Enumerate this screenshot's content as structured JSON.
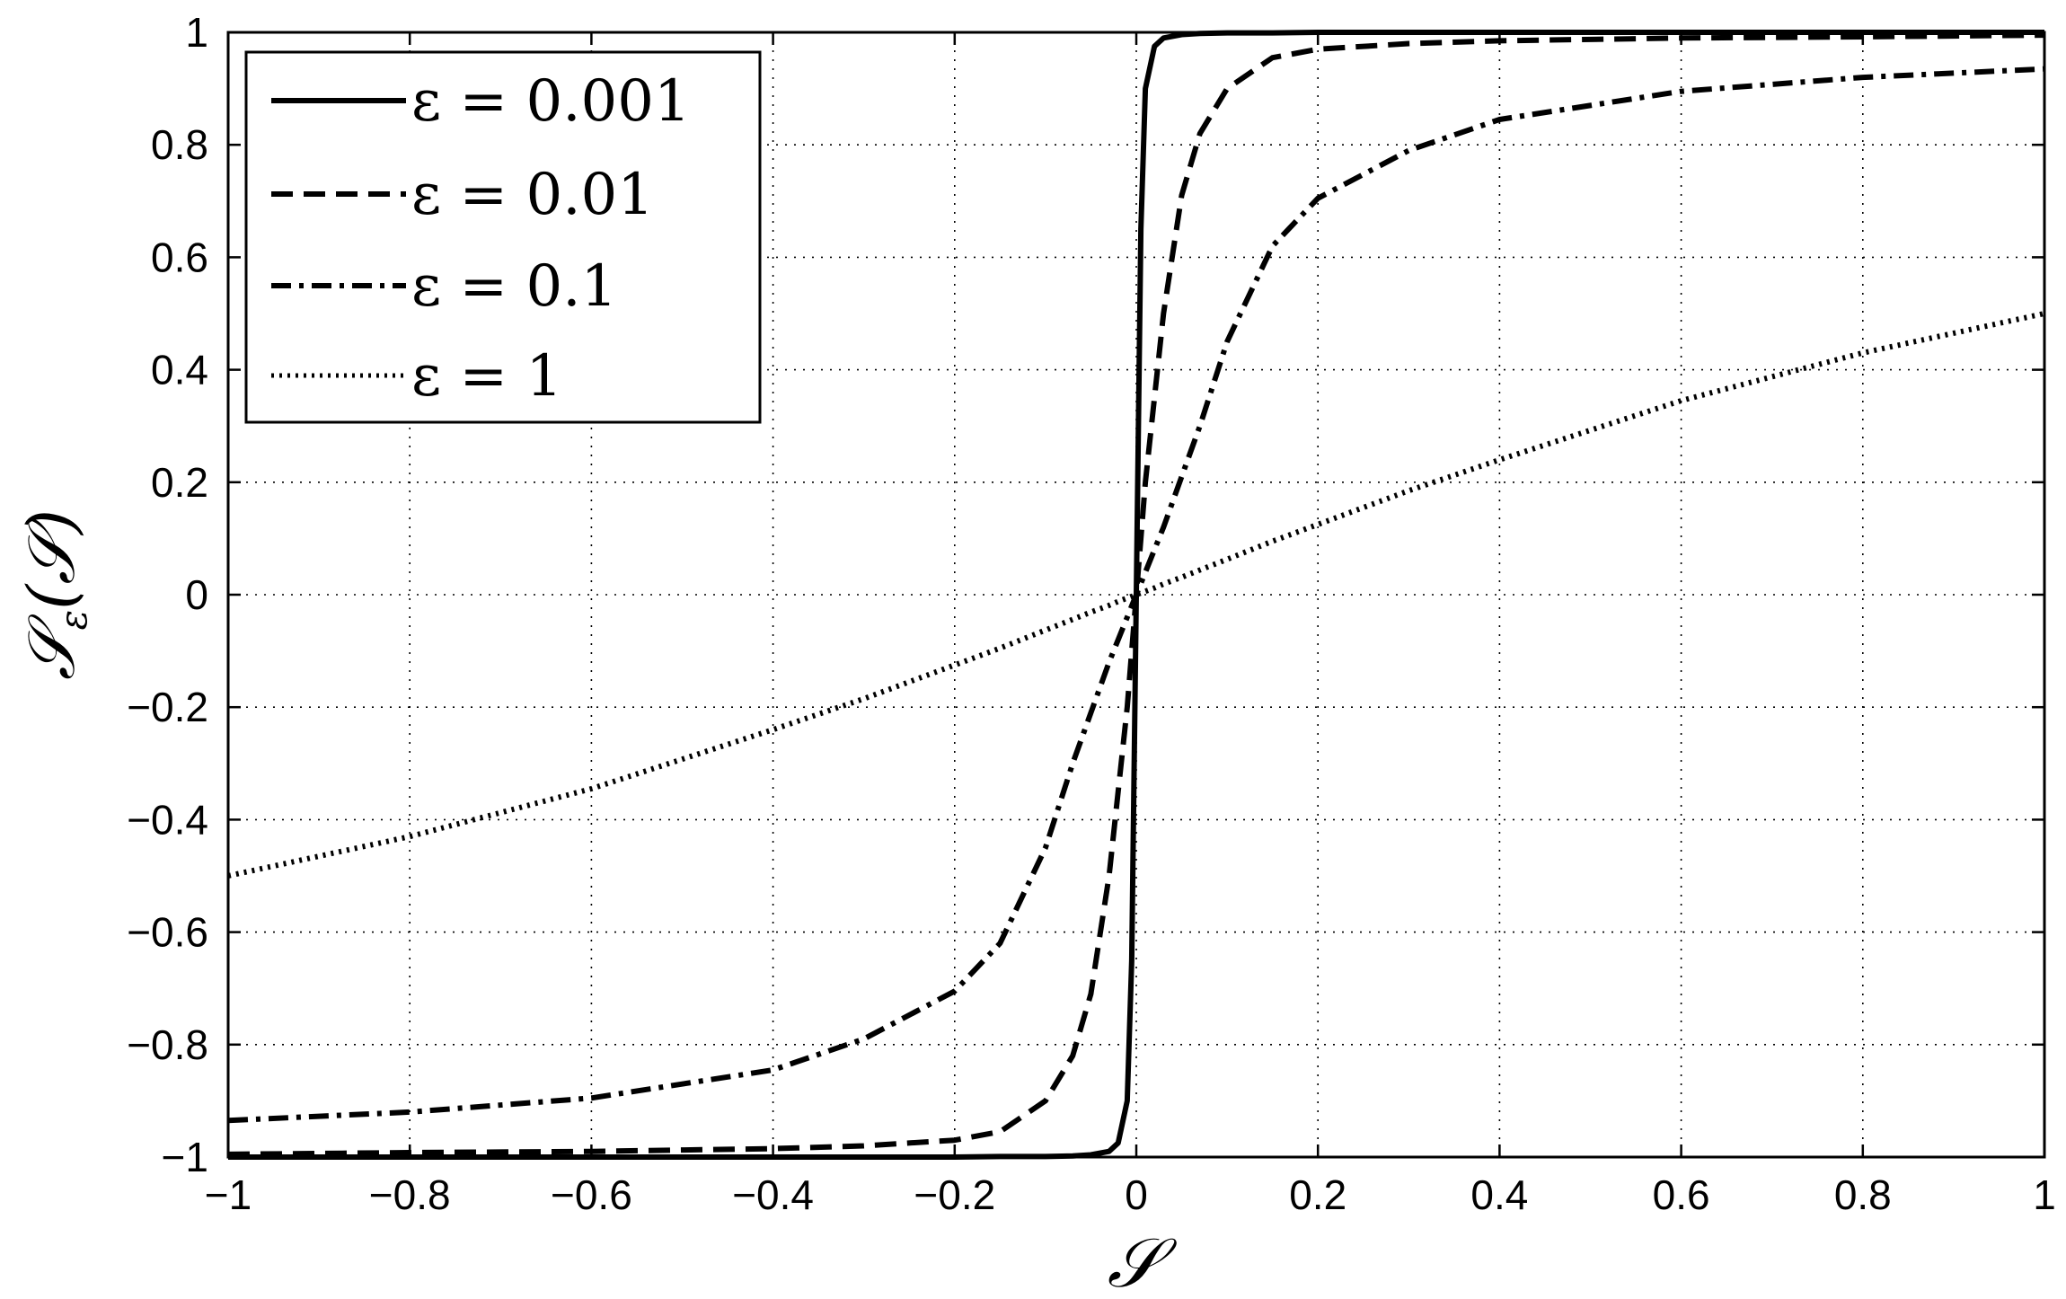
{
  "chart_data": {
    "type": "line",
    "xlabel": "𝒮",
    "ylabel_main": "𝒮",
    "ylabel_sub": "ε",
    "ylabel_arg": "(𝒮)",
    "xlim": [
      -1,
      1
    ],
    "ylim": [
      -1,
      1
    ],
    "grid": true,
    "legend_position": "top-left",
    "x_ticks": [
      -1,
      -0.8,
      -0.6,
      -0.4,
      -0.2,
      0,
      0.2,
      0.4,
      0.6,
      0.8,
      1
    ],
    "x_tick_labels": [
      "−1",
      "−0.8",
      "−0.6",
      "−0.4",
      "−0.2",
      "0",
      "0.2",
      "0.4",
      "0.6",
      "0.8",
      "1"
    ],
    "y_ticks": [
      -1,
      -0.8,
      -0.6,
      -0.4,
      -0.2,
      0,
      0.2,
      0.4,
      0.6,
      0.8,
      1
    ],
    "y_tick_labels": [
      "−1",
      "−0.8",
      "−0.6",
      "−0.4",
      "−0.2",
      "0",
      "0.2",
      "0.4",
      "0.6",
      "0.8",
      "1"
    ],
    "x": [
      -1,
      -0.8,
      -0.6,
      -0.4,
      -0.3,
      -0.2,
      -0.15,
      -0.1,
      -0.07,
      -0.05,
      -0.03,
      -0.02,
      -0.01,
      -0.005,
      0,
      0.005,
      0.01,
      0.02,
      0.03,
      0.05,
      0.07,
      0.1,
      0.15,
      0.2,
      0.3,
      0.4,
      0.6,
      0.8,
      1
    ],
    "series": [
      {
        "name": "ε = 0.001",
        "style": "solid",
        "values": [
          -1,
          -1,
          -1,
          -1,
          -1,
          -1,
          -0.999,
          -0.999,
          -0.998,
          -0.996,
          -0.99,
          -0.975,
          -0.9,
          -0.65,
          0,
          0.65,
          0.9,
          0.975,
          0.99,
          0.996,
          0.998,
          0.999,
          0.999,
          1,
          1,
          1,
          1,
          1,
          1
        ]
      },
      {
        "name": "ε = 0.01",
        "style": "dashed",
        "values": [
          -0.995,
          -0.992,
          -0.99,
          -0.985,
          -0.98,
          -0.97,
          -0.955,
          -0.9,
          -0.82,
          -0.71,
          -0.5,
          -0.35,
          -0.2,
          -0.1,
          0,
          0.1,
          0.2,
          0.35,
          0.5,
          0.71,
          0.82,
          0.9,
          0.955,
          0.97,
          0.98,
          0.985,
          0.99,
          0.992,
          0.995
        ]
      },
      {
        "name": "ε = 0.1",
        "style": "dashdot",
        "values": [
          -0.935,
          -0.92,
          -0.895,
          -0.845,
          -0.79,
          -0.705,
          -0.62,
          -0.45,
          -0.3,
          -0.21,
          -0.12,
          -0.08,
          -0.04,
          -0.02,
          0,
          0.02,
          0.04,
          0.08,
          0.12,
          0.21,
          0.3,
          0.45,
          0.62,
          0.705,
          0.79,
          0.845,
          0.895,
          0.92,
          0.935
        ]
      },
      {
        "name": "ε = 1",
        "style": "dotted",
        "values": [
          -0.5,
          -0.43,
          -0.345,
          -0.24,
          -0.185,
          -0.125,
          -0.095,
          -0.063,
          -0.044,
          -0.031,
          -0.019,
          -0.012,
          -0.006,
          -0.003,
          0,
          0.003,
          0.006,
          0.012,
          0.019,
          0.031,
          0.044,
          0.063,
          0.095,
          0.125,
          0.185,
          0.24,
          0.345,
          0.43,
          0.5
        ]
      }
    ]
  }
}
